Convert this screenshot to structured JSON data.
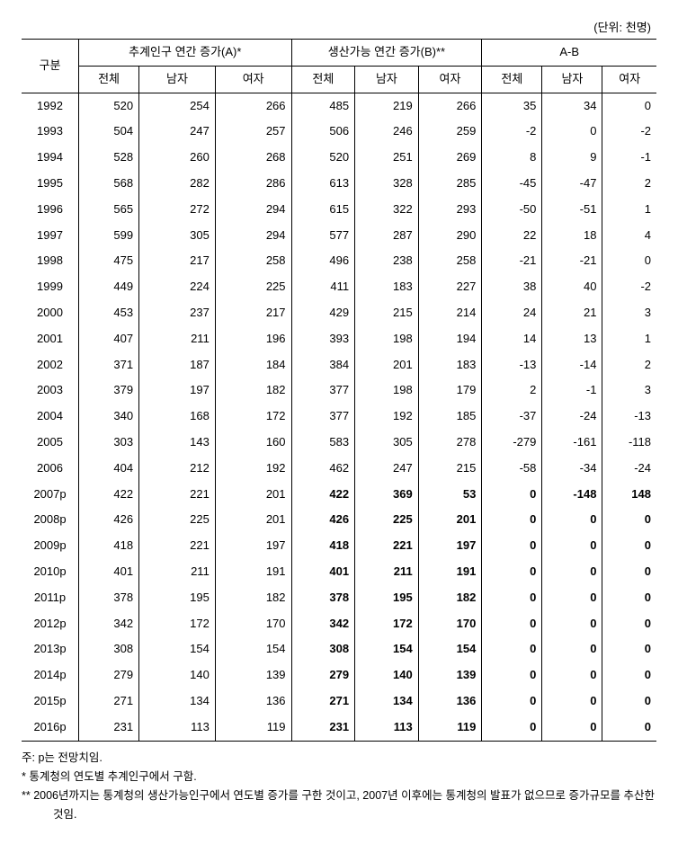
{
  "unit_label": "(단위: 천명)",
  "headers": {
    "rowhead": "구분",
    "group_a": "추계인구 연간 증가(A)*",
    "group_b": "생산가능 연간 증가(B)**",
    "group_diff": "A-B",
    "sub": {
      "total": "전체",
      "male": "남자",
      "female": "여자"
    }
  },
  "rows": [
    {
      "year": "1992",
      "a": [
        520,
        254,
        266
      ],
      "b": [
        485,
        219,
        266
      ],
      "d": [
        35,
        34,
        0
      ],
      "bold": false
    },
    {
      "year": "1993",
      "a": [
        504,
        247,
        257
      ],
      "b": [
        506,
        246,
        259
      ],
      "d": [
        -2,
        0,
        -2
      ],
      "bold": false
    },
    {
      "year": "1994",
      "a": [
        528,
        260,
        268
      ],
      "b": [
        520,
        251,
        269
      ],
      "d": [
        8,
        9,
        -1
      ],
      "bold": false
    },
    {
      "year": "1995",
      "a": [
        568,
        282,
        286
      ],
      "b": [
        613,
        328,
        285
      ],
      "d": [
        -45,
        -47,
        2
      ],
      "bold": false
    },
    {
      "year": "1996",
      "a": [
        565,
        272,
        294
      ],
      "b": [
        615,
        322,
        293
      ],
      "d": [
        -50,
        -51,
        1
      ],
      "bold": false
    },
    {
      "year": "1997",
      "a": [
        599,
        305,
        294
      ],
      "b": [
        577,
        287,
        290
      ],
      "d": [
        22,
        18,
        4
      ],
      "bold": false
    },
    {
      "year": "1998",
      "a": [
        475,
        217,
        258
      ],
      "b": [
        496,
        238,
        258
      ],
      "d": [
        -21,
        -21,
        0
      ],
      "bold": false
    },
    {
      "year": "1999",
      "a": [
        449,
        224,
        225
      ],
      "b": [
        411,
        183,
        227
      ],
      "d": [
        38,
        40,
        -2
      ],
      "bold": false
    },
    {
      "year": "2000",
      "a": [
        453,
        237,
        217
      ],
      "b": [
        429,
        215,
        214
      ],
      "d": [
        24,
        21,
        3
      ],
      "bold": false
    },
    {
      "year": "2001",
      "a": [
        407,
        211,
        196
      ],
      "b": [
        393,
        198,
        194
      ],
      "d": [
        14,
        13,
        1
      ],
      "bold": false
    },
    {
      "year": "2002",
      "a": [
        371,
        187,
        184
      ],
      "b": [
        384,
        201,
        183
      ],
      "d": [
        -13,
        -14,
        2
      ],
      "bold": false
    },
    {
      "year": "2003",
      "a": [
        379,
        197,
        182
      ],
      "b": [
        377,
        198,
        179
      ],
      "d": [
        2,
        -1,
        3
      ],
      "bold": false
    },
    {
      "year": "2004",
      "a": [
        340,
        168,
        172
      ],
      "b": [
        377,
        192,
        185
      ],
      "d": [
        -37,
        -24,
        -13
      ],
      "bold": false
    },
    {
      "year": "2005",
      "a": [
        303,
        143,
        160
      ],
      "b": [
        583,
        305,
        278
      ],
      "d": [
        -279,
        -161,
        -118
      ],
      "bold": false
    },
    {
      "year": "2006",
      "a": [
        404,
        212,
        192
      ],
      "b": [
        462,
        247,
        215
      ],
      "d": [
        -58,
        -34,
        -24
      ],
      "bold": false
    },
    {
      "year": "2007p",
      "a": [
        422,
        221,
        201
      ],
      "b": [
        422,
        369,
        53
      ],
      "d": [
        0,
        -148,
        148
      ],
      "bold": true
    },
    {
      "year": "2008p",
      "a": [
        426,
        225,
        201
      ],
      "b": [
        426,
        225,
        201
      ],
      "d": [
        0,
        0,
        0
      ],
      "bold": true
    },
    {
      "year": "2009p",
      "a": [
        418,
        221,
        197
      ],
      "b": [
        418,
        221,
        197
      ],
      "d": [
        0,
        0,
        0
      ],
      "bold": true
    },
    {
      "year": "2010p",
      "a": [
        401,
        211,
        191
      ],
      "b": [
        401,
        211,
        191
      ],
      "d": [
        0,
        0,
        0
      ],
      "bold": true
    },
    {
      "year": "2011p",
      "a": [
        378,
        195,
        182
      ],
      "b": [
        378,
        195,
        182
      ],
      "d": [
        0,
        0,
        0
      ],
      "bold": true
    },
    {
      "year": "2012p",
      "a": [
        342,
        172,
        170
      ],
      "b": [
        342,
        172,
        170
      ],
      "d": [
        0,
        0,
        0
      ],
      "bold": true
    },
    {
      "year": "2013p",
      "a": [
        308,
        154,
        154
      ],
      "b": [
        308,
        154,
        154
      ],
      "d": [
        0,
        0,
        0
      ],
      "bold": true
    },
    {
      "year": "2014p",
      "a": [
        279,
        140,
        139
      ],
      "b": [
        279,
        140,
        139
      ],
      "d": [
        0,
        0,
        0
      ],
      "bold": true
    },
    {
      "year": "2015p",
      "a": [
        271,
        134,
        136
      ],
      "b": [
        271,
        134,
        136
      ],
      "d": [
        0,
        0,
        0
      ],
      "bold": true
    },
    {
      "year": "2016p",
      "a": [
        231,
        113,
        119
      ],
      "b": [
        231,
        113,
        119
      ],
      "d": [
        0,
        0,
        0
      ],
      "bold": true
    }
  ],
  "footnotes": {
    "note_p": "주: p는 전망치임.",
    "note_star": "* 통계청의 연도별 추계인구에서 구함.",
    "note_dblstar": "** 2006년까지는 통계청의 생산가능인구에서 연도별 증가를 구한 것이고, 2007년 이후에는 통계청의 발표가 없으므로 증가규모를 추산한 것임."
  }
}
